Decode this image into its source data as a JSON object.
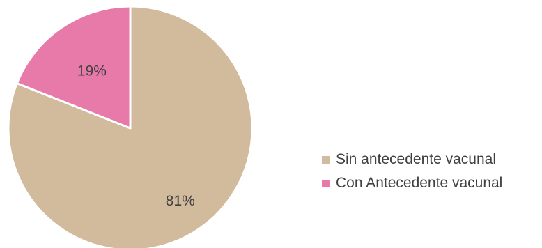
{
  "chart_data": {
    "type": "pie",
    "categories": [
      "Sin antecedente vacunal",
      "Con Antecedente vacunal"
    ],
    "values": [
      81,
      19
    ],
    "labels": [
      "81%",
      "19%"
    ],
    "colors": [
      "#D2BA9C",
      "#E77AA8"
    ],
    "start_angle_deg": 0,
    "direction": "clockwise",
    "legend_position": "right"
  },
  "legend": {
    "items": [
      {
        "label": "Sin antecedente vacunal",
        "color": "#D2BA9C"
      },
      {
        "label": "Con Antecedente vacunal",
        "color": "#E77AA8"
      }
    ]
  }
}
